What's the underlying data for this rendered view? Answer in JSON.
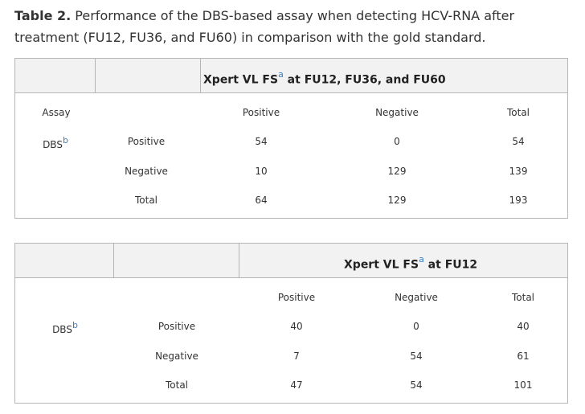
{
  "caption": {
    "label": "Table 2.",
    "text": " Performance of the DBS-based assay when detecting HCV-RNA after treatment (FU12, FU36, and FU60) in comparison with the gold standard."
  },
  "table1": {
    "header_text": "Xpert VL FS",
    "header_sup": "a",
    "header_suffix": " at FU12, FU36, and FU60",
    "assay_label": "Assay",
    "dbs_label": "DBS",
    "dbs_sup": "b",
    "columns": [
      "Positive",
      "Negative",
      "Total"
    ],
    "rows": [
      {
        "label": "Positive",
        "values": [
          "54",
          "0",
          "54"
        ]
      },
      {
        "label": "Negative",
        "values": [
          "10",
          "129",
          "139"
        ]
      },
      {
        "label": "Total",
        "values": [
          "64",
          "129",
          "193"
        ]
      }
    ]
  },
  "table2": {
    "header_text": "Xpert VL FS",
    "header_sup": "a",
    "header_suffix": " at FU12",
    "dbs_label": "DBS",
    "dbs_sup": "b",
    "columns": [
      "Positive",
      "Negative",
      "Total"
    ],
    "rows": [
      {
        "label": "Positive",
        "values": [
          "40",
          "0",
          "40"
        ]
      },
      {
        "label": "Negative",
        "values": [
          "7",
          "54",
          "61"
        ]
      },
      {
        "label": "Total",
        "values": [
          "47",
          "54",
          "101"
        ]
      }
    ]
  },
  "colors": {
    "footnote_link": "#3a7fc1",
    "header_bg": "#f2f2f2",
    "border": "#b5b5b5"
  }
}
